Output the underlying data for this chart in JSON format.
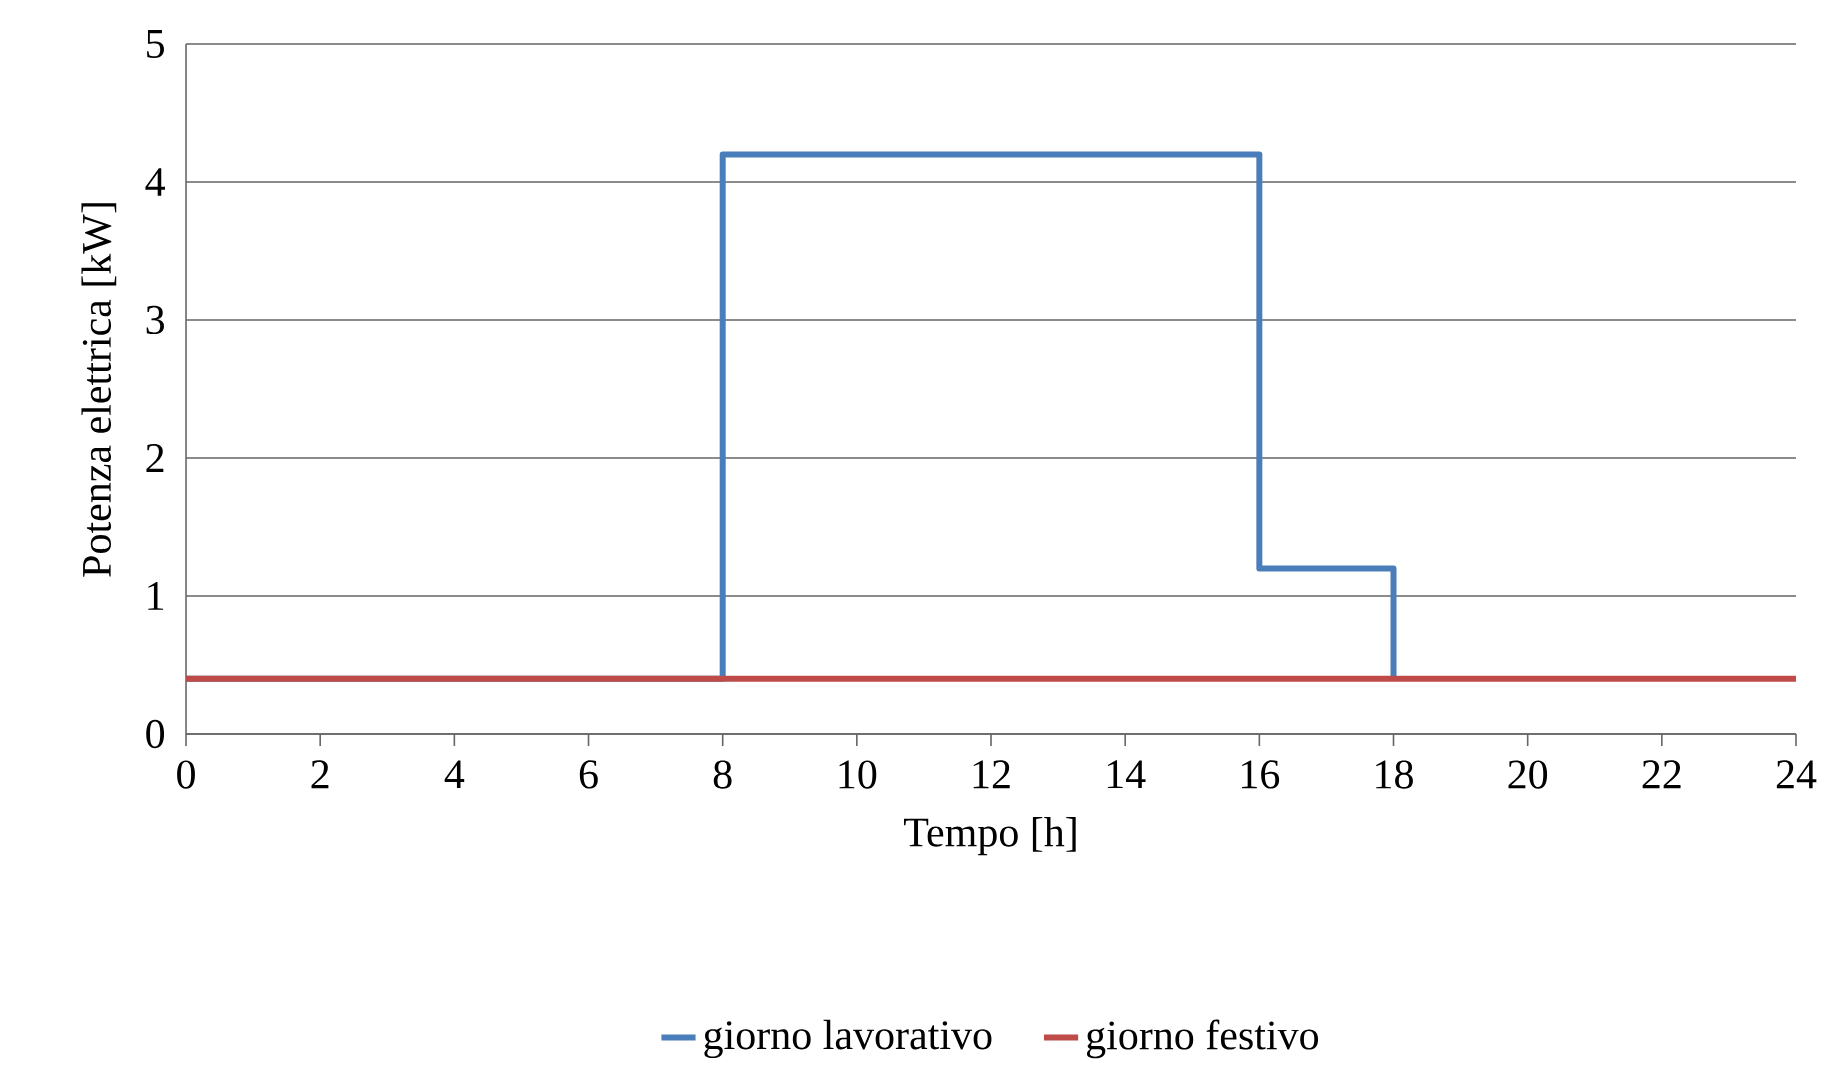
{
  "chart_data": {
    "type": "step",
    "xlabel": "Tempo [h]",
    "ylabel": "Potenza elettrica [kW]",
    "series": [
      {
        "name": "giorno lavorativo",
        "color": "#4a7ebb",
        "x": [
          0,
          8,
          16,
          18
        ],
        "values": [
          0.4,
          4.2,
          1.2,
          0.4
        ]
      },
      {
        "name": "giorno festivo",
        "color": "#be4b48",
        "x": [
          0,
          24
        ],
        "values": [
          0.4,
          0.4
        ]
      }
    ],
    "xlim": [
      0,
      24
    ],
    "xticks": [
      0,
      2,
      4,
      6,
      8,
      10,
      12,
      14,
      16,
      18,
      20,
      22,
      24
    ],
    "ylim": [
      0,
      5
    ],
    "yticks": [
      0,
      1,
      2,
      3,
      4,
      5
    ],
    "grid": "y",
    "legend": "bottom",
    "marker": "none",
    "line_style": "solid"
  }
}
